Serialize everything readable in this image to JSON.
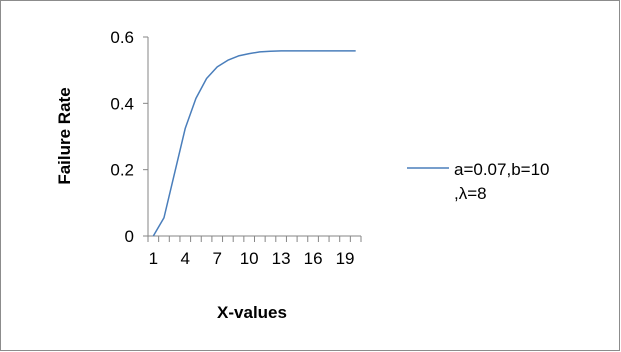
{
  "chart_data": {
    "type": "line",
    "title": "",
    "xlabel": "X-values",
    "ylabel": "Failure Rate",
    "x": [
      1,
      2,
      3,
      4,
      5,
      6,
      7,
      8,
      9,
      10,
      11,
      12,
      13,
      14,
      15,
      16,
      17,
      18,
      19,
      20
    ],
    "x_tick_labels": [
      "1",
      "4",
      "7",
      "10",
      "13",
      "16",
      "19"
    ],
    "x_tick_label_values": [
      1,
      4,
      7,
      10,
      13,
      16,
      19
    ],
    "y_ticks": [
      0,
      0.2,
      0.4,
      0.6
    ],
    "y_tick_labels": [
      "0",
      "0.2",
      "0.4",
      "0.6"
    ],
    "ylim": [
      0,
      0.6
    ],
    "grid": false,
    "legend_position": "right",
    "series": [
      {
        "name": "a=0.07,b=10 ,λ=8",
        "legend_lines": [
          "a=0.07,b=10",
          ",λ=8"
        ],
        "color": "#4a7ebb",
        "values": [
          0.0,
          0.055,
          0.19,
          0.325,
          0.415,
          0.475,
          0.51,
          0.53,
          0.543,
          0.55,
          0.555,
          0.557,
          0.558,
          0.558,
          0.558,
          0.558,
          0.558,
          0.558,
          0.558,
          0.558
        ]
      }
    ]
  }
}
